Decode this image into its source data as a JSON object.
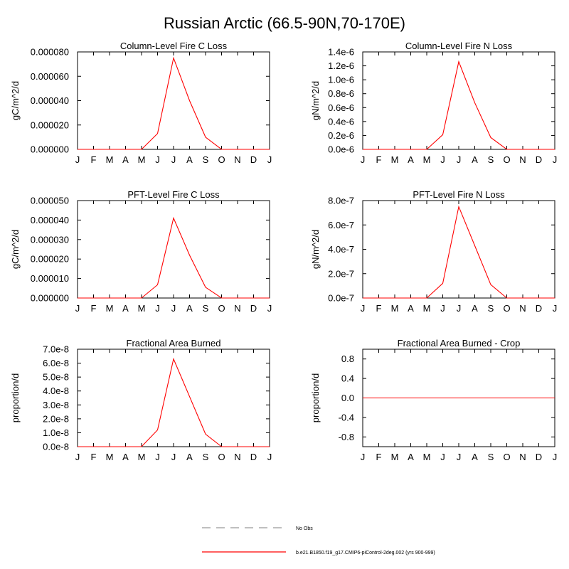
{
  "title": "Russian Arctic (66.5-90N,70-170E)",
  "months": [
    "J",
    "F",
    "M",
    "A",
    "M",
    "J",
    "J",
    "A",
    "S",
    "O",
    "N",
    "D",
    "J"
  ],
  "series_color": "#ff0000",
  "legend": {
    "obs_label": "No Obs",
    "model_label": "b.e21.B1850.f19_g17.CMIP6-piControl-2deg.002 (yrs 900-999)"
  },
  "chart_data": [
    {
      "type": "line",
      "title": "Column-Level Fire C Loss",
      "ylabel": "gC/m^2/d",
      "ylim": [
        0,
        8e-05
      ],
      "yticks": [
        0,
        2e-05,
        4e-05,
        6e-05,
        8e-05
      ],
      "yticklabels": [
        "0.000000",
        "0.000020",
        "0.000040",
        "0.000060",
        "0.000080"
      ],
      "x": [
        "J",
        "F",
        "M",
        "A",
        "M",
        "J",
        "J",
        "A",
        "S",
        "O",
        "N",
        "D",
        "J"
      ],
      "series": [
        {
          "name": "b.e21.B1850.f19_g17.CMIP6-piControl-2deg.002 (yrs 900-999)",
          "values": [
            0,
            0,
            0,
            0,
            0,
            1.3e-05,
            7.5e-05,
            4e-05,
            1e-05,
            0,
            0,
            0,
            0
          ]
        }
      ]
    },
    {
      "type": "line",
      "title": "Column-Level Fire N Loss",
      "ylabel": "gN/m^2/d",
      "ylim": [
        0,
        1.4e-06
      ],
      "yticks": [
        0,
        2e-07,
        4e-07,
        6e-07,
        8e-07,
        1e-06,
        1.2e-06,
        1.4e-06
      ],
      "yticklabels": [
        "0.0e-6",
        "0.2e-6",
        "0.4e-6",
        "0.6e-6",
        "0.8e-6",
        "1.0e-6",
        "1.2e-6",
        "1.4e-6"
      ],
      "x": [
        "J",
        "F",
        "M",
        "A",
        "M",
        "J",
        "J",
        "A",
        "S",
        "O",
        "N",
        "D",
        "J"
      ],
      "series": [
        {
          "name": "b.e21.B1850.f19_g17.CMIP6-piControl-2deg.002 (yrs 900-999)",
          "values": [
            0,
            0,
            0,
            0,
            0,
            2.1e-07,
            1.26e-06,
            6.7e-07,
            1.7e-07,
            0,
            0,
            0,
            0
          ]
        }
      ]
    },
    {
      "type": "line",
      "title": "PFT-Level Fire C Loss",
      "ylabel": "gC/m^2/d",
      "ylim": [
        0,
        5e-05
      ],
      "yticks": [
        0,
        1e-05,
        2e-05,
        3e-05,
        4e-05,
        5e-05
      ],
      "yticklabels": [
        "0.000000",
        "0.000010",
        "0.000020",
        "0.000030",
        "0.000040",
        "0.000050"
      ],
      "x": [
        "J",
        "F",
        "M",
        "A",
        "M",
        "J",
        "J",
        "A",
        "S",
        "O",
        "N",
        "D",
        "J"
      ],
      "series": [
        {
          "name": "b.e21.B1850.f19_g17.CMIP6-piControl-2deg.002 (yrs 900-999)",
          "values": [
            0,
            0,
            0,
            0,
            0,
            6.8e-06,
            4.1e-05,
            2.2e-05,
            5.5e-06,
            0,
            0,
            0,
            0
          ]
        }
      ]
    },
    {
      "type": "line",
      "title": "PFT-Level Fire N Loss",
      "ylabel": "gN/m^2/d",
      "ylim": [
        0,
        8e-07
      ],
      "yticks": [
        0,
        2e-07,
        4e-07,
        6e-07,
        8e-07
      ],
      "yticklabels": [
        "0.0e-7",
        "2.0e-7",
        "4.0e-7",
        "6.0e-7",
        "8.0e-7"
      ],
      "x": [
        "J",
        "F",
        "M",
        "A",
        "M",
        "J",
        "J",
        "A",
        "S",
        "O",
        "N",
        "D",
        "J"
      ],
      "series": [
        {
          "name": "b.e21.B1850.f19_g17.CMIP6-piControl-2deg.002 (yrs 900-999)",
          "values": [
            0,
            0,
            0,
            0,
            0,
            1.2e-07,
            7.5e-07,
            4.3e-07,
            1.1e-07,
            0,
            0,
            0,
            0
          ]
        }
      ]
    },
    {
      "type": "line",
      "title": "Fractional Area Burned",
      "ylabel": "proportion/d",
      "ylim": [
        0,
        7e-08
      ],
      "yticks": [
        0,
        1e-08,
        2e-08,
        3e-08,
        4e-08,
        5e-08,
        6e-08,
        7e-08
      ],
      "yticklabels": [
        "0.0e-8",
        "1.0e-8",
        "2.0e-8",
        "3.0e-8",
        "4.0e-8",
        "5.0e-8",
        "6.0e-8",
        "7.0e-8"
      ],
      "x": [
        "J",
        "F",
        "M",
        "A",
        "M",
        "J",
        "J",
        "A",
        "S",
        "O",
        "N",
        "D",
        "J"
      ],
      "series": [
        {
          "name": "b.e21.B1850.f19_g17.CMIP6-piControl-2deg.002 (yrs 900-999)",
          "values": [
            0,
            0,
            0,
            0,
            0,
            1.2e-08,
            6.3e-08,
            3.6e-08,
            9e-09,
            0,
            0,
            0,
            0
          ]
        }
      ]
    },
    {
      "type": "line",
      "title": "Fractional Area Burned - Crop",
      "ylabel": "proportion/d",
      "ylim": [
        -1,
        1
      ],
      "yticks": [
        -0.8,
        -0.4,
        0,
        0.4,
        0.8
      ],
      "yticklabels": [
        "-0.8",
        "-0.4",
        "0.0",
        "0.4",
        "0.8"
      ],
      "x": [
        "J",
        "F",
        "M",
        "A",
        "M",
        "J",
        "J",
        "A",
        "S",
        "O",
        "N",
        "D",
        "J"
      ],
      "series": [
        {
          "name": "b.e21.B1850.f19_g17.CMIP6-piControl-2deg.002 (yrs 900-999)",
          "values": [
            0,
            0,
            0,
            0,
            0,
            0,
            0,
            0,
            0,
            0,
            0,
            0,
            0
          ]
        }
      ]
    }
  ]
}
